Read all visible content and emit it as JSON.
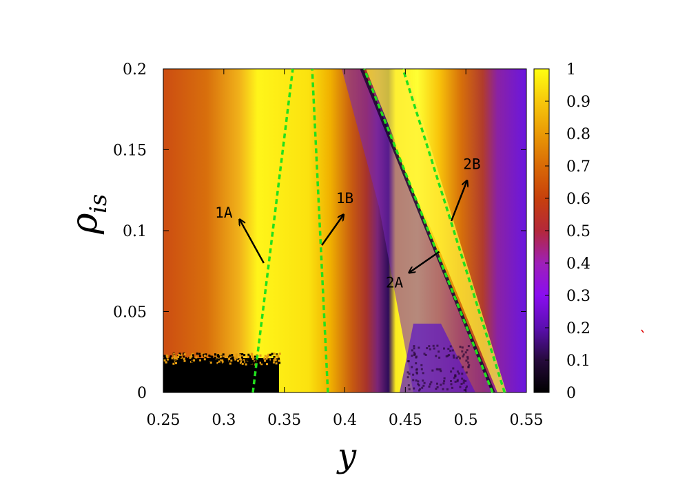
{
  "chart_data": {
    "type": "heatmap",
    "xlabel": "y",
    "ylabel_main": "ρ",
    "ylabel_sub": "is",
    "xlim": [
      0.25,
      0.55
    ],
    "ylim": [
      0,
      0.2
    ],
    "x_ticks": [
      "0.25",
      "0.3",
      "0.35",
      "0.4",
      "0.45",
      "0.5",
      "0.55"
    ],
    "y_ticks": [
      "0",
      "0.05",
      "0.1",
      "0.15",
      "0.2"
    ],
    "colorbar": {
      "range": [
        0,
        1
      ],
      "ticks": [
        "0",
        "0.1",
        "0.2",
        "0.3",
        "0.4",
        "0.5",
        "0.6",
        "0.7",
        "0.8",
        "0.9",
        "1"
      ]
    },
    "boundary_lines": [
      {
        "name": "line-1",
        "points": [
          [
            0.324,
            0.0
          ],
          [
            0.357,
            0.2
          ]
        ]
      },
      {
        "name": "line-2",
        "points": [
          [
            0.386,
            0.0
          ],
          [
            0.373,
            0.2
          ]
        ]
      },
      {
        "name": "line-3",
        "points": [
          [
            0.522,
            0.0
          ],
          [
            0.416,
            0.2
          ]
        ]
      },
      {
        "name": "line-4",
        "points": [
          [
            0.532,
            0.0
          ],
          [
            0.448,
            0.2
          ]
        ]
      }
    ],
    "annotations": [
      {
        "label": "1A",
        "text_at": [
          0.3,
          0.108
        ],
        "arrow_from": [
          0.333,
          0.08
        ],
        "arrow_to": [
          0.313,
          0.107
        ]
      },
      {
        "label": "1B",
        "text_at": [
          0.4,
          0.117
        ],
        "arrow_from": [
          0.381,
          0.091
        ],
        "arrow_to": [
          0.399,
          0.11
        ]
      },
      {
        "label": "2A",
        "text_at": [
          0.441,
          0.065
        ],
        "arrow_from": [
          0.478,
          0.087
        ],
        "arrow_to": [
          0.453,
          0.074
        ]
      },
      {
        "label": "2B",
        "text_at": [
          0.505,
          0.138
        ],
        "arrow_from": [
          0.488,
          0.106
        ],
        "arrow_to": [
          0.501,
          0.131
        ]
      }
    ]
  }
}
